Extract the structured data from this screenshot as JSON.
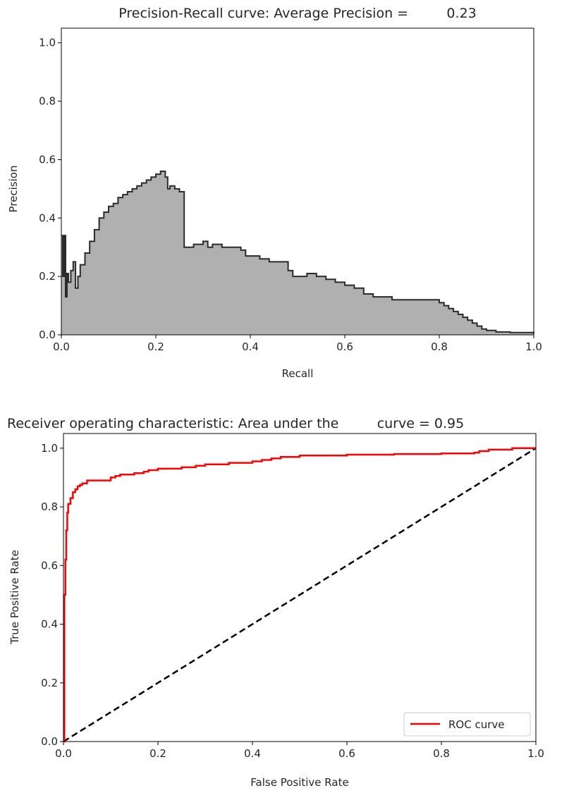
{
  "chart_data": [
    {
      "type": "area",
      "title": "Precision-Recall curve: Average Precision =         0.23",
      "xlabel": "Recall",
      "ylabel": "Precision",
      "xlim": [
        0,
        1
      ],
      "ylim": [
        0,
        1.05
      ],
      "x_ticks": [
        "0.0",
        "0.2",
        "0.4",
        "0.6",
        "0.8",
        "1.0"
      ],
      "y_ticks": [
        "0.0",
        "0.2",
        "0.4",
        "0.6",
        "0.8",
        "1.0"
      ],
      "step": true,
      "fill_color": "#b0b0b0",
      "line_color": "#2b2b2b",
      "series": [
        {
          "x": [
            0.0,
            0.003,
            0.006,
            0.009,
            0.012,
            0.015,
            0.02,
            0.025,
            0.03,
            0.035,
            0.04,
            0.05,
            0.06,
            0.07,
            0.08,
            0.09,
            0.1,
            0.11,
            0.12,
            0.13,
            0.14,
            0.15,
            0.16,
            0.17,
            0.18,
            0.19,
            0.2,
            0.21,
            0.22,
            0.225,
            0.23,
            0.24,
            0.25,
            0.26,
            0.262,
            0.28,
            0.3,
            0.31,
            0.32,
            0.34,
            0.36,
            0.38,
            0.39,
            0.4,
            0.42,
            0.44,
            0.46,
            0.48,
            0.49,
            0.5,
            0.52,
            0.54,
            0.56,
            0.58,
            0.6,
            0.62,
            0.64,
            0.66,
            0.68,
            0.7,
            0.72,
            0.74,
            0.76,
            0.78,
            0.8,
            0.81,
            0.82,
            0.83,
            0.84,
            0.85,
            0.86,
            0.87,
            0.88,
            0.89,
            0.9,
            0.92,
            0.95,
            1.0
          ],
          "y": [
            0.34,
            0.2,
            0.34,
            0.13,
            0.21,
            0.18,
            0.22,
            0.25,
            0.16,
            0.2,
            0.24,
            0.28,
            0.32,
            0.36,
            0.4,
            0.42,
            0.44,
            0.45,
            0.47,
            0.48,
            0.49,
            0.5,
            0.51,
            0.52,
            0.53,
            0.54,
            0.55,
            0.56,
            0.54,
            0.5,
            0.51,
            0.5,
            0.49,
            0.3,
            0.3,
            0.31,
            0.32,
            0.3,
            0.31,
            0.3,
            0.3,
            0.29,
            0.27,
            0.27,
            0.26,
            0.25,
            0.25,
            0.22,
            0.2,
            0.2,
            0.21,
            0.2,
            0.19,
            0.18,
            0.17,
            0.16,
            0.14,
            0.13,
            0.13,
            0.12,
            0.12,
            0.12,
            0.12,
            0.12,
            0.11,
            0.1,
            0.09,
            0.08,
            0.07,
            0.06,
            0.05,
            0.04,
            0.03,
            0.02,
            0.015,
            0.01,
            0.008,
            0.005
          ]
        }
      ]
    },
    {
      "type": "line",
      "title": "Receiver operating characteristic: Area under the         curve = 0.95",
      "xlabel": "False Positive Rate",
      "ylabel": "True Positive Rate",
      "xlim": [
        0,
        1
      ],
      "ylim": [
        0,
        1.05
      ],
      "x_ticks": [
        "0.0",
        "0.2",
        "0.4",
        "0.6",
        "0.8",
        "1.0"
      ],
      "y_ticks": [
        "0.0",
        "0.2",
        "0.4",
        "0.6",
        "0.8",
        "1.0"
      ],
      "legend": {
        "position": "lower right"
      },
      "series": [
        {
          "name": "ROC curve",
          "color": "#ff0000",
          "style": "solid",
          "x": [
            0.0,
            0.002,
            0.004,
            0.006,
            0.008,
            0.01,
            0.015,
            0.02,
            0.025,
            0.03,
            0.035,
            0.04,
            0.05,
            0.06,
            0.08,
            0.1,
            0.11,
            0.12,
            0.15,
            0.17,
            0.18,
            0.2,
            0.25,
            0.28,
            0.3,
            0.35,
            0.4,
            0.42,
            0.44,
            0.46,
            0.5,
            0.55,
            0.6,
            0.7,
            0.8,
            0.87,
            0.88,
            0.9,
            0.95,
            1.0
          ],
          "y": [
            0.0,
            0.5,
            0.62,
            0.72,
            0.78,
            0.81,
            0.83,
            0.85,
            0.86,
            0.87,
            0.875,
            0.88,
            0.89,
            0.89,
            0.89,
            0.9,
            0.905,
            0.91,
            0.915,
            0.92,
            0.925,
            0.93,
            0.935,
            0.94,
            0.945,
            0.95,
            0.955,
            0.96,
            0.965,
            0.97,
            0.975,
            0.975,
            0.978,
            0.98,
            0.982,
            0.985,
            0.99,
            0.995,
            1.0,
            1.0
          ]
        },
        {
          "color": "#000000",
          "style": "dashed",
          "x": [
            0,
            1
          ],
          "y": [
            0,
            1
          ]
        }
      ]
    }
  ]
}
